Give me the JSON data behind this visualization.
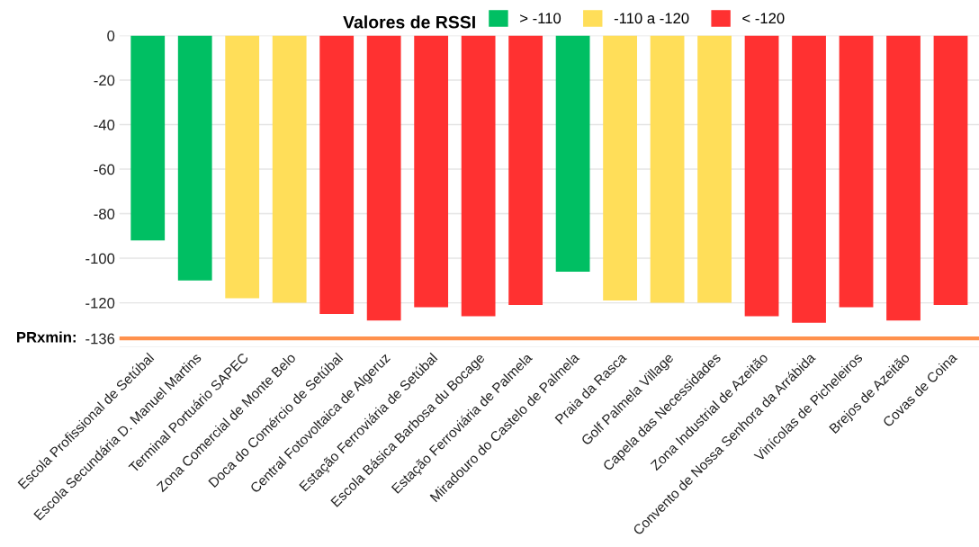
{
  "chart_data": {
    "type": "bar",
    "legend_title": "Valores de RSSI",
    "legend": "top",
    "categories": [
      "Escola Profissional de Setúbal",
      "Escola Secundária D. Manuel Martins",
      "Terminal Portuário SAPEC",
      "Zona Comercial de Monte Belo",
      "Doca do Comércio de Setúbal",
      "Central Fotovoltaica de Algeruz",
      "Estação Ferroviária de Setúbal",
      "Escola Básica Barbosa du Bocage",
      "Estação Ferroviária de Palmela",
      "Miradouro do Castelo de Palmela",
      "Praia da Rasca",
      "Golf Palmela Village",
      "Capela das Necessidades",
      "Zona Industrial de Azeitão",
      "Convento de Nossa Senhora da Arrábida",
      "Vinícolas de Picheleiros",
      "Brejos de Azeitão",
      "Covas de Coina"
    ],
    "series": [
      {
        "name": "> -110",
        "color": "#00bf63",
        "values": [
          -92,
          -110,
          null,
          null,
          null,
          null,
          null,
          null,
          null,
          -106,
          null,
          null,
          null,
          null,
          null,
          null,
          null,
          null
        ]
      },
      {
        "name": "-110 a -120",
        "color": "#ffde59",
        "values": [
          null,
          null,
          -118,
          -120,
          null,
          null,
          null,
          null,
          null,
          null,
          -119,
          -120,
          -120,
          null,
          null,
          null,
          null,
          null
        ]
      },
      {
        "name": "< -120",
        "color": "#ff3131",
        "values": [
          null,
          null,
          null,
          null,
          -125,
          -128,
          -122,
          -126,
          -121,
          null,
          null,
          null,
          null,
          -126,
          -129,
          -122,
          -128,
          -121
        ]
      }
    ],
    "ylim": [
      -140,
      0
    ],
    "yticks": [
      0,
      -20,
      -40,
      -60,
      -80,
      -100,
      -120,
      -136,
      {
        "value": -140,
        "label": null
      }
    ],
    "ref_lines": [
      {
        "axis": "y",
        "value": -136,
        "label": "PRxmin:",
        "color": "#ff914d"
      }
    ],
    "grid": "y"
  }
}
